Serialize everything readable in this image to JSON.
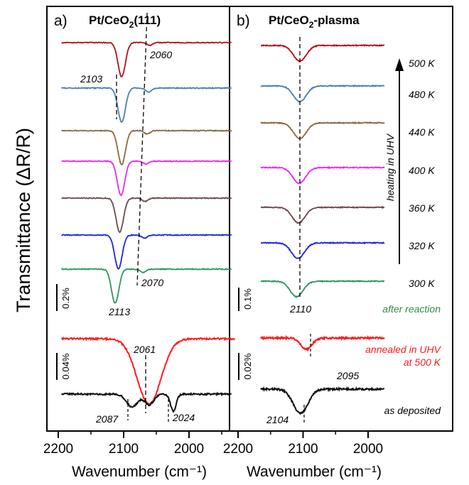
{
  "chart_data": [
    {
      "panel_label": "a)",
      "title": "Pt/CeO₂(111)",
      "type": "line",
      "xlabel": "Wavenumber (cm⁻¹)",
      "ylabel": "Transmittance (ΔR/R)",
      "xlim": [
        2200,
        1930
      ],
      "xticks": [
        2200,
        2100,
        2000
      ],
      "scale_bars": [
        "0.2%",
        "0.04%"
      ],
      "series": [
        {
          "color": "#b3121a",
          "baseline": 60,
          "peaks": [
            {
              "x": 2103,
              "depth": 1.0,
              "width": 8
            },
            {
              "x": 2060,
              "depth": 0.08,
              "width": 6
            }
          ],
          "labels": [
            "2060"
          ]
        },
        {
          "color": "#4a7fb0",
          "baseline": 124,
          "peaks": [
            {
              "x": 2103,
              "depth": 1.0,
              "width": 8
            },
            {
              "x": 2062,
              "depth": 0.12,
              "width": 6
            }
          ],
          "labels": [
            "2103"
          ]
        },
        {
          "color": "#8a6a3e",
          "baseline": 184,
          "peaks": [
            {
              "x": 2103,
              "depth": 1.0,
              "width": 8
            },
            {
              "x": 2064,
              "depth": 0.1,
              "width": 6
            }
          ],
          "labels": []
        },
        {
          "color": "#ef27ef",
          "baseline": 227,
          "peaks": [
            {
              "x": 2104,
              "depth": 1.0,
              "width": 8
            },
            {
              "x": 2066,
              "depth": 0.08,
              "width": 6
            }
          ],
          "labels": []
        },
        {
          "color": "#6b4b4b",
          "baseline": 279,
          "peaks": [
            {
              "x": 2106,
              "depth": 1.0,
              "width": 8
            },
            {
              "x": 2067,
              "depth": 0.1,
              "width": 6
            }
          ],
          "labels": []
        },
        {
          "color": "#1e24e0",
          "baseline": 331,
          "peaks": [
            {
              "x": 2108,
              "depth": 1.0,
              "width": 8
            },
            {
              "x": 2068,
              "depth": 0.1,
              "width": 6
            }
          ],
          "labels": []
        },
        {
          "color": "#2f9460",
          "baseline": 379,
          "peaks": [
            {
              "x": 2113,
              "depth": 1.0,
              "width": 8
            },
            {
              "x": 2070,
              "depth": 0.1,
              "width": 6
            }
          ],
          "labels": [
            "2070",
            "2113"
          ]
        },
        {
          "color": "#ff1b1b",
          "baseline": 477,
          "peaks": [
            {
              "x": 2061,
              "depth": 1.0,
              "width": 26
            }
          ],
          "labels": [
            "2061"
          ]
        },
        {
          "color": "#111111",
          "baseline": 555,
          "peaks": [
            {
              "x": 2087,
              "depth": 0.6,
              "width": 12
            },
            {
              "x": 2061,
              "depth": 0.5,
              "width": 10
            },
            {
              "x": 2024,
              "depth": 0.8,
              "width": 6
            }
          ],
          "labels": [
            "2087",
            "2024"
          ]
        }
      ]
    },
    {
      "panel_label": "b)",
      "title": "Pt/CeO₂-plasma",
      "type": "line",
      "xlabel": "Wavenumber (cm⁻¹)",
      "xlim": [
        2200,
        1930
      ],
      "xticks": [
        2200,
        2100,
        2000
      ],
      "scale_bars": [
        "0.1%",
        "0.02%"
      ],
      "temperatures": [
        "500 K",
        "480 K",
        "440 K",
        "400 K",
        "360 K",
        "320 K",
        "300 K"
      ],
      "heating_label": "heating in UHV",
      "after_reaction_label": "after reaction",
      "annealed_label_1": "annealed in UHV",
      "annealed_label_2": "at 500 K",
      "as_deposited_label": "as deposited",
      "series": [
        {
          "color": "#b3121a",
          "baseline": 64,
          "peaks": [
            {
              "x": 2105,
              "depth": 1.0,
              "width": 14
            }
          ]
        },
        {
          "color": "#4a7fb0",
          "baseline": 121,
          "peaks": [
            {
              "x": 2105,
              "depth": 1.0,
              "width": 14
            }
          ]
        },
        {
          "color": "#8a6a3e",
          "baseline": 173,
          "peaks": [
            {
              "x": 2105,
              "depth": 1.0,
              "width": 14
            }
          ]
        },
        {
          "color": "#ef27ef",
          "baseline": 236,
          "peaks": [
            {
              "x": 2106,
              "depth": 1.0,
              "width": 14
            }
          ]
        },
        {
          "color": "#6b4b4b",
          "baseline": 292,
          "peaks": [
            {
              "x": 2107,
              "depth": 1.0,
              "width": 14
            }
          ]
        },
        {
          "color": "#1e24e0",
          "baseline": 342,
          "peaks": [
            {
              "x": 2108,
              "depth": 1.0,
              "width": 14
            }
          ]
        },
        {
          "color": "#2f9460",
          "baseline": 396,
          "peaks": [
            {
              "x": 2110,
              "depth": 1.0,
              "width": 14
            }
          ],
          "labels": [
            "2110"
          ]
        },
        {
          "color": "#ff1b1b",
          "baseline": 476,
          "peaks": [
            {
              "x": 2095,
              "depth": 1.0,
              "width": 12
            }
          ],
          "labels": [
            "2095"
          ]
        },
        {
          "color": "#111111",
          "baseline": 548,
          "peaks": [
            {
              "x": 2104,
              "depth": 1.0,
              "width": 16
            }
          ],
          "labels": [
            "2104"
          ]
        }
      ]
    }
  ]
}
